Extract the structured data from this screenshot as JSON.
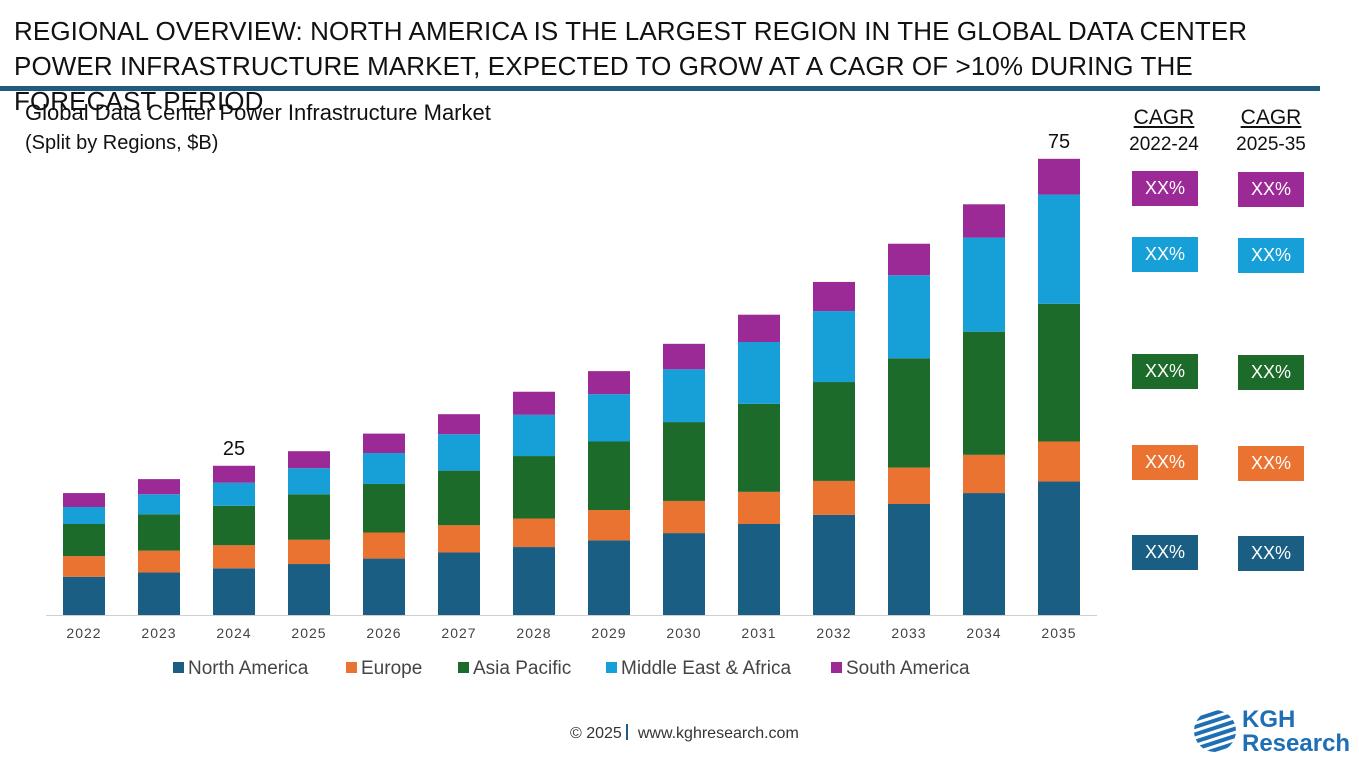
{
  "headline": "REGIONAL OVERVIEW: NORTH AMERICA IS THE LARGEST REGION IN THE GLOBAL DATA CENTER POWER INFRASTRUCTURE MARKET, EXPECTED TO GROW AT A CAGR OF >10% DURING THE FORECAST PERIOD",
  "colors": {
    "North America": "#1a5e84",
    "Europe": "#ea7331",
    "Asia Pacific": "#1c6b2a",
    "Middle East & Africa": "#17a0d8",
    "South America": "#9c2a96",
    "rule": "#1f5c7d"
  },
  "chart_data": {
    "type": "bar",
    "stacked": true,
    "title": "Global Data Center Power Infrastructure Market",
    "subtitle": "(Split by Regions, $B)",
    "categories": [
      "2022",
      "2023",
      "2024",
      "2025",
      "2026",
      "2027",
      "2028",
      "2029",
      "2030",
      "2031",
      "2032",
      "2033",
      "2034",
      "2035"
    ],
    "ylim": [
      0,
      75
    ],
    "grid": false,
    "legend_position": "bottom",
    "series": [
      {
        "name": "North America",
        "values": [
          6.3,
          7.0,
          7.7,
          8.4,
          9.3,
          10.3,
          11.2,
          12.3,
          13.5,
          15.0,
          16.5,
          18.3,
          20.1,
          22.0
        ]
      },
      {
        "name": "Europe",
        "values": [
          3.4,
          3.6,
          3.8,
          4.0,
          4.3,
          4.5,
          4.7,
          5.0,
          5.3,
          5.3,
          5.6,
          6.0,
          6.3,
          6.6
        ]
      },
      {
        "name": "Asia Pacific",
        "values": [
          5.3,
          6.0,
          6.5,
          7.5,
          8.0,
          9.0,
          10.3,
          11.3,
          13.0,
          14.5,
          16.3,
          18.0,
          20.3,
          22.7
        ]
      },
      {
        "name": "Middle East & Africa",
        "values": [
          2.8,
          3.3,
          3.8,
          4.3,
          5.1,
          6.0,
          6.8,
          7.8,
          8.7,
          10.2,
          11.7,
          13.7,
          15.5,
          18.0
        ]
      },
      {
        "name": "South America",
        "values": [
          2.3,
          2.5,
          2.8,
          2.8,
          3.2,
          3.3,
          3.8,
          3.8,
          4.2,
          4.5,
          4.8,
          5.2,
          5.5,
          5.9
        ]
      }
    ],
    "data_labels": [
      {
        "category": "2024",
        "text": "25"
      },
      {
        "category": "2035",
        "text": "75"
      }
    ]
  },
  "cagr": {
    "headers": [
      {
        "label": "CAGR",
        "period": "2022-24"
      },
      {
        "label": "CAGR",
        "period": "2025-35"
      }
    ],
    "rows": [
      {
        "region": "South America",
        "v1": "XX%",
        "v2": "XX%"
      },
      {
        "region": "Middle East & Africa",
        "v1": "XX%",
        "v2": "XX%"
      },
      {
        "region": "Asia Pacific",
        "v1": "XX%",
        "v2": "XX%"
      },
      {
        "region": "Europe",
        "v1": "XX%",
        "v2": "XX%"
      },
      {
        "region": "North America",
        "v1": "XX%",
        "v2": "XX%"
      }
    ]
  },
  "footer": {
    "copyright": "© 2025",
    "website": "www.kghresearch.com"
  },
  "logo": {
    "line1": "KGH",
    "line2": "Research"
  }
}
